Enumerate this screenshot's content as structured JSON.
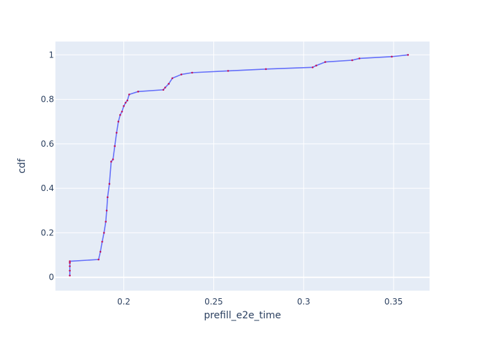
{
  "chart_data": {
    "type": "line",
    "title": "",
    "xlabel": "prefill_e2e_time",
    "ylabel": "cdf",
    "xlim": [
      0.162,
      0.37
    ],
    "ylim": [
      -0.06,
      1.06
    ],
    "grid": true,
    "legend": "none",
    "x_ticks": [
      0.2,
      0.25,
      0.3,
      0.35
    ],
    "x_tick_labels": [
      "0.2",
      "0.25",
      "0.3",
      "0.35"
    ],
    "y_ticks": [
      0,
      0.2,
      0.4,
      0.6,
      0.8,
      1
    ],
    "y_tick_labels": [
      "0",
      "0.2",
      "0.4",
      "0.6",
      "0.8",
      "1"
    ],
    "colors": {
      "plot_bg": "#e5ecf6",
      "grid": "#ffffff",
      "line": "#636efa",
      "marker": "#c0135e",
      "text": "#2a3f5f"
    },
    "series": [
      {
        "x": [
          0.17,
          0.17,
          0.17,
          0.17,
          0.17,
          0.186,
          0.187,
          0.188,
          0.189,
          0.19,
          0.1905,
          0.191,
          0.192,
          0.193,
          0.194,
          0.195,
          0.196,
          0.197,
          0.198,
          0.199,
          0.2,
          0.201,
          0.202,
          0.203,
          0.208,
          0.222,
          0.223,
          0.225,
          0.227,
          0.232,
          0.238,
          0.258,
          0.279,
          0.305,
          0.307,
          0.312,
          0.327,
          0.331,
          0.349,
          0.358
        ],
        "y": [
          0.008,
          0.03,
          0.05,
          0.065,
          0.072,
          0.08,
          0.115,
          0.16,
          0.2,
          0.25,
          0.3,
          0.36,
          0.42,
          0.52,
          0.53,
          0.59,
          0.65,
          0.7,
          0.73,
          0.745,
          0.77,
          0.785,
          0.795,
          0.822,
          0.835,
          0.843,
          0.853,
          0.87,
          0.895,
          0.912,
          0.92,
          0.928,
          0.936,
          0.944,
          0.952,
          0.968,
          0.976,
          0.984,
          0.992,
          1.0
        ]
      }
    ]
  }
}
